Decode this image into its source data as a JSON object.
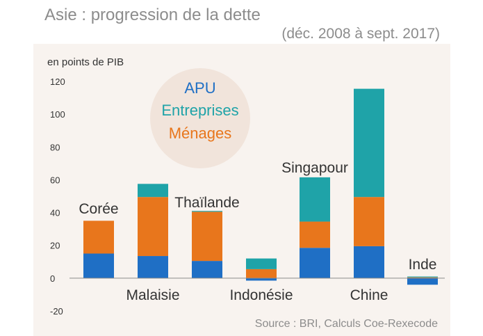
{
  "title": "Asie : progression de la dette",
  "subtitle": "(déc. 2008 à sept. 2017)",
  "source": "Source : BRI, Calculs Coe-Rexecode",
  "chart_data": {
    "type": "bar",
    "stacked": true,
    "ylabel": "en points de PIB",
    "ylim": [
      -20,
      120
    ],
    "yticks": [
      -20,
      0,
      20,
      40,
      60,
      80,
      100,
      120
    ],
    "categories": [
      "Corée",
      "Malaisie",
      "Thaïlande",
      "Indonésie",
      "Singapour",
      "Chine",
      "Inde"
    ],
    "series": [
      {
        "name": "APU",
        "color": "#1f6fc5",
        "values": [
          15,
          13.5,
          10.5,
          -1.5,
          18.5,
          19.5,
          -4
        ]
      },
      {
        "name": "Ménages",
        "color": "#e8761c",
        "values": [
          20,
          36,
          30,
          5.5,
          16,
          30,
          0.5
        ]
      },
      {
        "name": "Entreprises",
        "color": "#1fa3a8",
        "values": [
          0,
          8,
          0.5,
          6.5,
          27,
          66,
          0.5
        ]
      }
    ],
    "legend_order": [
      "APU",
      "Entreprises",
      "Ménages"
    ],
    "legend_position": "top-left",
    "grid": false
  }
}
